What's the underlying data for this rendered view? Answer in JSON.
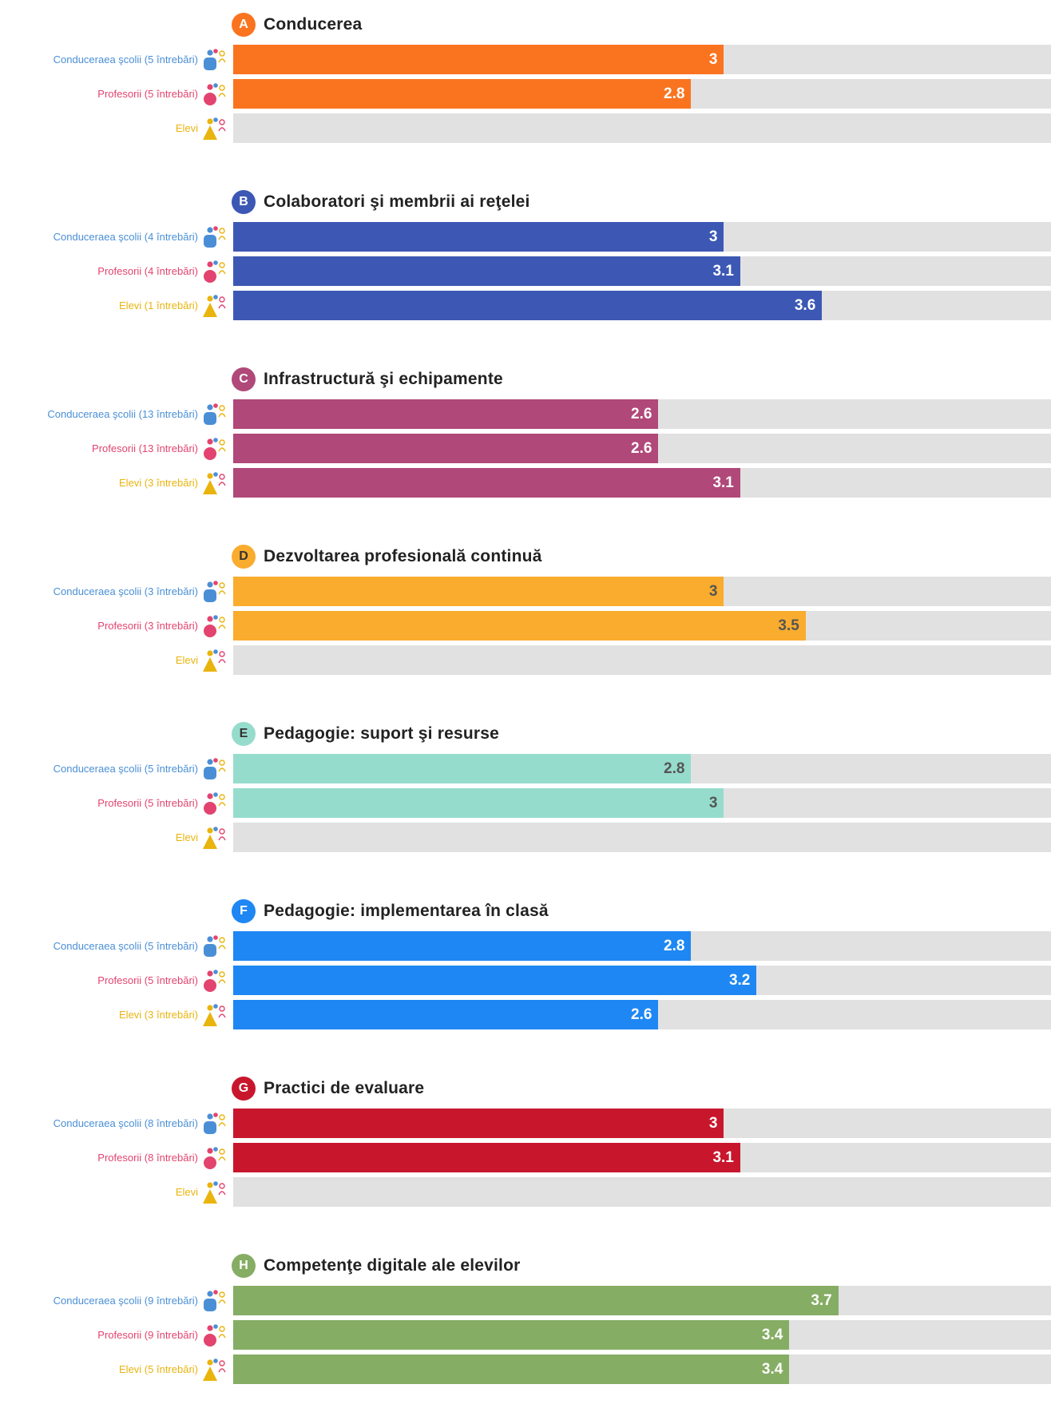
{
  "chart_data": {
    "type": "bar",
    "orientation": "horizontal",
    "xlim": [
      0,
      5
    ],
    "grid": false,
    "group_colors": {
      "lead": "#4a8fd6",
      "teach": "#e2446f",
      "stud": "#e9b40e"
    },
    "sections": [
      {
        "letter": "A",
        "title": "Conducerea",
        "color": "#fa7420",
        "text_dark": false,
        "rows": [
          {
            "group": "lead",
            "label": "Conduceraea şcolii (5 întrebări)",
            "value": 3,
            "value_text": "3"
          },
          {
            "group": "teach",
            "label": "Profesorii (5 întrebări)",
            "value": 2.8,
            "value_text": "2.8"
          },
          {
            "group": "stud",
            "label": "Elevi",
            "value": null,
            "value_text": ""
          }
        ]
      },
      {
        "letter": "B",
        "title": "Colaboratori şi membrii ai reţelei",
        "color": "#3c58b4",
        "text_dark": false,
        "rows": [
          {
            "group": "lead",
            "label": "Conduceraea şcolii (4 întrebări)",
            "value": 3,
            "value_text": "3"
          },
          {
            "group": "teach",
            "label": "Profesorii (4 întrebări)",
            "value": 3.1,
            "value_text": "3.1"
          },
          {
            "group": "stud",
            "label": "Elevi (1 întrebări)",
            "value": 3.6,
            "value_text": "3.6"
          }
        ]
      },
      {
        "letter": "C",
        "title": "Infrastructură şi echipamente",
        "color": "#b04879",
        "text_dark": false,
        "rows": [
          {
            "group": "lead",
            "label": "Conduceraea şcolii (13 întrebări)",
            "value": 2.6,
            "value_text": "2.6"
          },
          {
            "group": "teach",
            "label": "Profesorii (13 întrebări)",
            "value": 2.6,
            "value_text": "2.6"
          },
          {
            "group": "stud",
            "label": "Elevi (3 întrebări)",
            "value": 3.1,
            "value_text": "3.1"
          }
        ]
      },
      {
        "letter": "D",
        "title": "Dezvoltarea profesională continuă",
        "color": "#f9ac2e",
        "text_dark": true,
        "rows": [
          {
            "group": "lead",
            "label": "Conduceraea şcolii (3 întrebări)",
            "value": 3,
            "value_text": "3"
          },
          {
            "group": "teach",
            "label": "Profesorii (3 întrebări)",
            "value": 3.5,
            "value_text": "3.5"
          },
          {
            "group": "stud",
            "label": "Elevi",
            "value": null,
            "value_text": ""
          }
        ]
      },
      {
        "letter": "E",
        "title": "Pedagogie: suport şi resurse",
        "color": "#96dccd",
        "text_dark": true,
        "rows": [
          {
            "group": "lead",
            "label": "Conduceraea şcolii (5 întrebări)",
            "value": 2.8,
            "value_text": "2.8"
          },
          {
            "group": "teach",
            "label": "Profesorii (5 întrebări)",
            "value": 3,
            "value_text": "3"
          },
          {
            "group": "stud",
            "label": "Elevi",
            "value": null,
            "value_text": ""
          }
        ]
      },
      {
        "letter": "F",
        "title": "Pedagogie: implementarea în clasă",
        "color": "#1e87f3",
        "text_dark": false,
        "rows": [
          {
            "group": "lead",
            "label": "Conduceraea şcolii (5 întrebări)",
            "value": 2.8,
            "value_text": "2.8"
          },
          {
            "group": "teach",
            "label": "Profesorii (5 întrebări)",
            "value": 3.2,
            "value_text": "3.2"
          },
          {
            "group": "stud",
            "label": "Elevi (3 întrebări)",
            "value": 2.6,
            "value_text": "2.6"
          }
        ]
      },
      {
        "letter": "G",
        "title": "Practici de evaluare",
        "color": "#c8172d",
        "text_dark": false,
        "rows": [
          {
            "group": "lead",
            "label": "Conduceraea şcolii (8 întrebări)",
            "value": 3,
            "value_text": "3"
          },
          {
            "group": "teach",
            "label": "Profesorii (8 întrebări)",
            "value": 3.1,
            "value_text": "3.1"
          },
          {
            "group": "stud",
            "label": "Elevi",
            "value": null,
            "value_text": ""
          }
        ]
      },
      {
        "letter": "H",
        "title": "Competenţe digitale ale elevilor",
        "color": "#85ad64",
        "text_dark": false,
        "rows": [
          {
            "group": "lead",
            "label": "Conduceraea şcolii (9 întrebări)",
            "value": 3.7,
            "value_text": "3.7"
          },
          {
            "group": "teach",
            "label": "Profesorii (9 întrebări)",
            "value": 3.4,
            "value_text": "3.4"
          },
          {
            "group": "stud",
            "label": "Elevi (5 întrebări)",
            "value": 3.4,
            "value_text": "3.4"
          }
        ]
      }
    ]
  }
}
